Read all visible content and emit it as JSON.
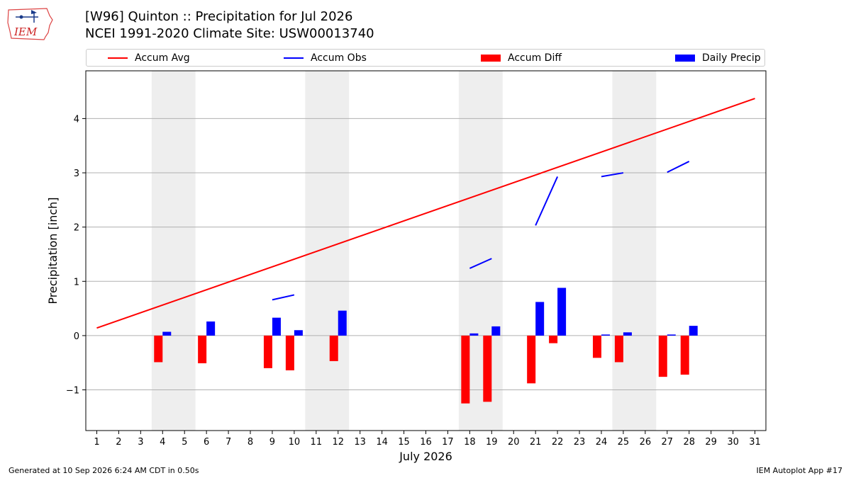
{
  "header": {
    "logo_text": "IEM",
    "title_line1": "[W96] Quinton :: Precipitation for Jul 2026",
    "title_line2": "NCEI 1991-2020 Climate Site: USW00013740"
  },
  "footer": {
    "left": "Generated at 10 Sep 2026 6:24 AM CDT in 0.50s",
    "right": "IEM Autoplot App #17"
  },
  "chart_data": {
    "type": "bar",
    "xlabel": "July 2026",
    "ylabel": "Precipitation [inch]",
    "xlim": [
      0.5,
      31.5
    ],
    "ylim": [
      -1.75,
      4.88
    ],
    "yticks": [
      -1,
      0,
      1,
      2,
      3,
      4
    ],
    "ytick_labels": [
      "−1",
      "0",
      "1",
      "2",
      "3",
      "4"
    ],
    "xticks": [
      1,
      2,
      3,
      4,
      5,
      6,
      7,
      8,
      9,
      10,
      11,
      12,
      13,
      14,
      15,
      16,
      17,
      18,
      19,
      20,
      21,
      22,
      23,
      24,
      25,
      26,
      27,
      28,
      29,
      30,
      31
    ],
    "grid": "horizontal",
    "legend_position": "top",
    "weekend_spans": [
      [
        3.5,
        5.5
      ],
      [
        10.5,
        12.5
      ],
      [
        17.5,
        19.5
      ],
      [
        24.5,
        26.5
      ]
    ],
    "legend": [
      {
        "name": "Accum Avg",
        "kind": "line",
        "color": "#ff0000"
      },
      {
        "name": "Accum Obs",
        "kind": "line",
        "color": "#0000ff"
      },
      {
        "name": "Accum Diff",
        "kind": "patch",
        "color": "#ff0000"
      },
      {
        "name": "Daily Precip",
        "kind": "patch",
        "color": "#0000ff"
      }
    ],
    "accum_avg": {
      "x": [
        1,
        31
      ],
      "y": [
        0.14,
        4.37
      ],
      "color": "#ff0000"
    },
    "accum_obs": {
      "color": "#0000ff",
      "segments": [
        [
          [
            9,
            0.66
          ],
          [
            10,
            0.75
          ]
        ],
        [
          [
            18,
            1.24
          ],
          [
            19,
            1.42
          ]
        ],
        [
          [
            21,
            2.03
          ],
          [
            22,
            2.93
          ]
        ],
        [
          [
            24,
            2.93
          ],
          [
            25,
            3.0
          ]
        ],
        [
          [
            27,
            3.01
          ],
          [
            28,
            3.21
          ]
        ]
      ]
    },
    "accum_diff": {
      "color": "#ff0000",
      "x": [
        4,
        6,
        9,
        10,
        12,
        18,
        19,
        21,
        22,
        24,
        25,
        27,
        28
      ],
      "values": [
        -0.49,
        -0.51,
        -0.6,
        -0.64,
        -0.47,
        -1.25,
        -1.22,
        -0.88,
        -0.14,
        -0.41,
        -0.49,
        -0.76,
        -0.72
      ]
    },
    "daily_precip": {
      "color": "#0000ff",
      "x": [
        4,
        6,
        9,
        10,
        12,
        18,
        19,
        21,
        22,
        24,
        25,
        27,
        28
      ],
      "values": [
        0.07,
        0.26,
        0.33,
        0.1,
        0.46,
        0.04,
        0.17,
        0.62,
        0.88,
        0.02,
        0.06,
        0.02,
        0.18
      ]
    }
  }
}
